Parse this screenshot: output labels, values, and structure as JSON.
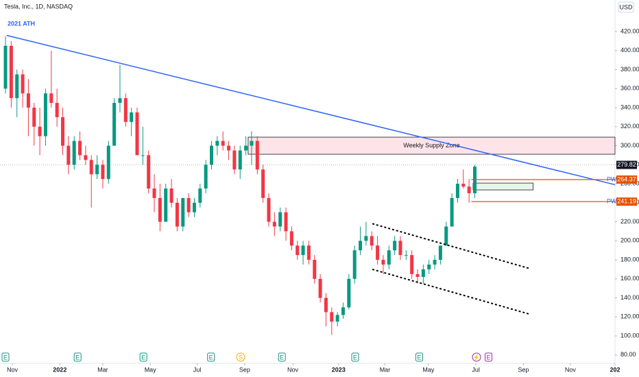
{
  "chart_data": {
    "type": "candlestick",
    "title": "Tesla, Inc., 1D, NASDAQ",
    "currency": "USD",
    "annotation": "2021 ATH",
    "up_color": "#089981",
    "down_color": "#f23645",
    "ohlc": [
      [
        360,
        415,
        355,
        405
      ],
      [
        405,
        410,
        340,
        350
      ],
      [
        350,
        380,
        330,
        375
      ],
      [
        375,
        380,
        340,
        355
      ],
      [
        355,
        370,
        310,
        340
      ],
      [
        340,
        345,
        300,
        320
      ],
      [
        320,
        340,
        290,
        310
      ],
      [
        310,
        360,
        300,
        355
      ],
      [
        355,
        400,
        340,
        345
      ],
      [
        345,
        360,
        320,
        330
      ],
      [
        330,
        340,
        290,
        300
      ],
      [
        300,
        310,
        270,
        280
      ],
      [
        280,
        310,
        275,
        305
      ],
      [
        305,
        315,
        285,
        290
      ],
      [
        290,
        300,
        280,
        285
      ],
      [
        285,
        290,
        235,
        270
      ],
      [
        270,
        290,
        265,
        280
      ],
      [
        280,
        285,
        255,
        265
      ],
      [
        265,
        305,
        260,
        300
      ],
      [
        300,
        350,
        300,
        345
      ],
      [
        345,
        385,
        335,
        350
      ],
      [
        350,
        355,
        320,
        325
      ],
      [
        325,
        340,
        310,
        335
      ],
      [
        335,
        340,
        290,
        290
      ],
      [
        290,
        320,
        280,
        290
      ],
      [
        290,
        295,
        250,
        255
      ],
      [
        255,
        270,
        230,
        245
      ],
      [
        245,
        260,
        210,
        220
      ],
      [
        220,
        260,
        220,
        255
      ],
      [
        255,
        265,
        235,
        240
      ],
      [
        240,
        245,
        210,
        215
      ],
      [
        215,
        245,
        210,
        245
      ],
      [
        245,
        250,
        225,
        230
      ],
      [
        230,
        245,
        225,
        240
      ],
      [
        240,
        260,
        235,
        255
      ],
      [
        255,
        285,
        250,
        280
      ],
      [
        280,
        305,
        275,
        300
      ],
      [
        300,
        310,
        290,
        305
      ],
      [
        305,
        315,
        295,
        300
      ],
      [
        300,
        305,
        285,
        295
      ],
      [
        295,
        300,
        270,
        275
      ],
      [
        275,
        300,
        265,
        295
      ],
      [
        295,
        310,
        290,
        300
      ],
      [
        300,
        315,
        280,
        305
      ],
      [
        305,
        310,
        270,
        275
      ],
      [
        275,
        280,
        240,
        245
      ],
      [
        245,
        250,
        215,
        220
      ],
      [
        220,
        230,
        205,
        215
      ],
      [
        215,
        235,
        210,
        230
      ],
      [
        230,
        235,
        200,
        210
      ],
      [
        210,
        215,
        190,
        195
      ],
      [
        195,
        200,
        180,
        185
      ],
      [
        185,
        200,
        175,
        195
      ],
      [
        195,
        200,
        175,
        180
      ],
      [
        180,
        185,
        155,
        160
      ],
      [
        160,
        165,
        135,
        140
      ],
      [
        140,
        145,
        110,
        125
      ],
      [
        125,
        130,
        101,
        115
      ],
      [
        115,
        125,
        110,
        122
      ],
      [
        122,
        135,
        118,
        130
      ],
      [
        130,
        165,
        128,
        160
      ],
      [
        160,
        195,
        155,
        190
      ],
      [
        190,
        215,
        185,
        200
      ],
      [
        200,
        220,
        195,
        205
      ],
      [
        205,
        210,
        190,
        195
      ],
      [
        195,
        205,
        175,
        180
      ],
      [
        180,
        185,
        165,
        175
      ],
      [
        175,
        195,
        170,
        190
      ],
      [
        190,
        205,
        185,
        200
      ],
      [
        200,
        205,
        180,
        185
      ],
      [
        185,
        190,
        180,
        185
      ],
      [
        185,
        190,
        160,
        165
      ],
      [
        165,
        170,
        155,
        162
      ],
      [
        162,
        175,
        155,
        170
      ],
      [
        170,
        180,
        165,
        175
      ],
      [
        175,
        185,
        170,
        180
      ],
      [
        180,
        195,
        175,
        195
      ],
      [
        195,
        220,
        195,
        215
      ],
      [
        215,
        250,
        215,
        245
      ],
      [
        245,
        265,
        240,
        260
      ],
      [
        260,
        275,
        255,
        257
      ],
      [
        257,
        265,
        240,
        250
      ],
      [
        250,
        280,
        245,
        278
      ]
    ],
    "xlim": [
      -0.96,
      106.5
    ],
    "ylim": [
      71.2,
      453.2
    ],
    "xticks": [
      {
        "value": 1.2,
        "label": "Nov"
      },
      {
        "value": 9.5,
        "label": "2022"
      },
      {
        "value": 17,
        "label": "Mar"
      },
      {
        "value": 25.3,
        "label": "May"
      },
      {
        "value": 33.5,
        "label": "Jul"
      },
      {
        "value": 41.8,
        "label": "Sep"
      },
      {
        "value": 50.2,
        "label": "Nov"
      },
      {
        "value": 58.2,
        "label": "2023"
      },
      {
        "value": 66.3,
        "label": "Mar"
      },
      {
        "value": 73.9,
        "label": "May"
      },
      {
        "value": 82.2,
        "label": "Jul"
      },
      {
        "value": 90.5,
        "label": "Sep"
      },
      {
        "value": 98.7,
        "label": "Nov"
      },
      {
        "value": 106.5,
        "label": "202"
      }
    ],
    "yticks": [
      {
        "value": 80,
        "label": "80.00"
      },
      {
        "value": 100,
        "label": "100.00"
      },
      {
        "value": 120,
        "label": "120.00"
      },
      {
        "value": 140,
        "label": "140.00"
      },
      {
        "value": 160,
        "label": "160.00"
      },
      {
        "value": 180,
        "label": "180.00"
      },
      {
        "value": 200,
        "label": "200.00"
      },
      {
        "value": 220,
        "label": "220.00"
      },
      {
        "value": 240,
        "label": "240.00"
      },
      {
        "value": 260,
        "label": "260.00"
      },
      {
        "value": 280,
        "label": "280.00"
      },
      {
        "value": 300,
        "label": "300.00"
      },
      {
        "value": 320,
        "label": "320.00"
      },
      {
        "value": 340,
        "label": "340.00"
      },
      {
        "value": 360,
        "label": "360.00"
      },
      {
        "value": 380,
        "label": "380.00"
      },
      {
        "value": 400,
        "label": "400.00"
      },
      {
        "value": 420,
        "label": "420.00"
      }
    ],
    "trendline": {
      "x": [
        0.2,
        106.5
      ],
      "y": [
        416,
        259
      ],
      "color": "#2962ff"
    },
    "zones": [
      {
        "label": "Weekly Supply Zone",
        "x": [
          42.4,
          106.5
        ],
        "y": [
          291,
          309
        ],
        "color": "#fce4e8"
      },
      {
        "x": [
          81.7,
          92.2
        ],
        "y": [
          253.5,
          260.7
        ],
        "color": "#e8f5e9"
      }
    ],
    "channel": [
      {
        "x": [
          64.1,
          91.5
        ],
        "y": [
          218,
          171
        ]
      },
      {
        "x": [
          64.1,
          91.5
        ],
        "y": [
          170,
          123
        ]
      }
    ],
    "levels": [
      {
        "label": "PWH",
        "value": 264.37,
        "x": 81.4,
        "color": "#e65100"
      },
      {
        "label": "PWL",
        "value": 241.19,
        "x": 81.4,
        "color": "#e65100"
      }
    ],
    "last_price": 279.82,
    "events": [
      {
        "x": 0,
        "label": "E"
      },
      {
        "x": 12.6,
        "label": "E"
      },
      {
        "x": 24.1,
        "label": "E"
      },
      {
        "x": 35.9,
        "label": "E"
      },
      {
        "x": 41.1,
        "label": "S"
      },
      {
        "x": 48.3,
        "label": "E"
      },
      {
        "x": 61.1,
        "label": "E"
      },
      {
        "x": 72.3,
        "label": "E"
      },
      {
        "x": 82.3,
        "label": "⚡"
      },
      {
        "x": 84.4,
        "label": "E"
      }
    ]
  }
}
